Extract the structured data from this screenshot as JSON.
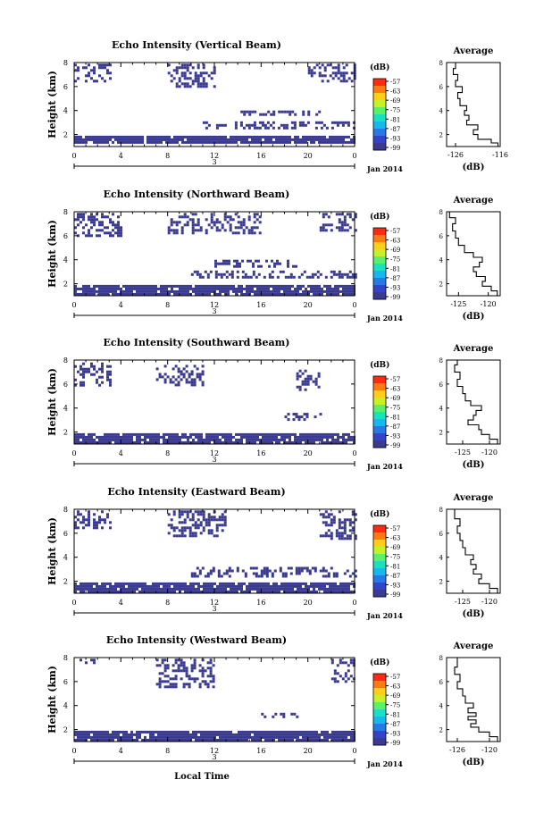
{
  "xlabel": "Local Time",
  "date_label": "Jan 2014",
  "colorbar": {
    "unit": "(dB)",
    "ticks": [
      "-57",
      "-63",
      "-69",
      "-75",
      "-81",
      "-87",
      "-93",
      "-99"
    ],
    "colors": [
      "#ff2a12",
      "#ff7a10",
      "#ffcf18",
      "#c8f028",
      "#5af06a",
      "#19e0c0",
      "#16b8f0",
      "#2a78e6",
      "#3344c8",
      "#3a3a90"
    ]
  },
  "chart_data": [
    {
      "type": "heatmap",
      "title": "Echo Intensity (Vertical Beam)",
      "ylabel": "Height (km)",
      "xlabel": "",
      "xticks": [
        "0",
        "4",
        "8",
        "12",
        "16",
        "20",
        "0"
      ],
      "xlim": [
        0,
        24
      ],
      "yticks": [
        "2",
        "4",
        "6",
        "8"
      ],
      "ylim": [
        1,
        8
      ],
      "day_marker": "3",
      "dominant_value_db": -99,
      "echo_layers": [
        {
          "t_start": 0,
          "t_end": 24,
          "h_bottom": 1.3,
          "h_top": 1.9
        },
        {
          "t_start": 11,
          "t_end": 24,
          "h_bottom": 2.6,
          "h_top": 3.1
        },
        {
          "t_start": 14,
          "t_end": 21,
          "h_bottom": 3.6,
          "h_top": 4.0
        },
        {
          "t_start": 0,
          "t_end": 3,
          "h_bottom": 6.5,
          "h_top": 7.9
        },
        {
          "t_start": 8,
          "t_end": 12,
          "h_bottom": 6.0,
          "h_top": 7.9
        },
        {
          "t_start": 20,
          "t_end": 24,
          "h_bottom": 6.5,
          "h_top": 7.9
        }
      ],
      "average": {
        "title": "Average",
        "xlabel": "(dB)",
        "xlim": [
          -128,
          -116
        ],
        "xticks": [
          "-126",
          "-116"
        ],
        "ylim": [
          1,
          8
        ],
        "yticks": [
          "2",
          "4",
          "6",
          "8"
        ],
        "profile": [
          {
            "h": 1.0,
            "v": -116.5
          },
          {
            "h": 1.3,
            "v": -118
          },
          {
            "h": 1.6,
            "v": -121
          },
          {
            "h": 2.0,
            "v": -122
          },
          {
            "h": 2.4,
            "v": -121
          },
          {
            "h": 2.8,
            "v": -123.5
          },
          {
            "h": 3.2,
            "v": -123
          },
          {
            "h": 3.6,
            "v": -124
          },
          {
            "h": 4.0,
            "v": -123.5
          },
          {
            "h": 4.4,
            "v": -125
          },
          {
            "h": 5.0,
            "v": -125.5
          },
          {
            "h": 5.5,
            "v": -124.5
          },
          {
            "h": 6.0,
            "v": -126
          },
          {
            "h": 6.5,
            "v": -125.5
          },
          {
            "h": 7.0,
            "v": -126.5
          },
          {
            "h": 7.5,
            "v": -126
          },
          {
            "h": 8.0,
            "v": -127
          }
        ]
      }
    },
    {
      "type": "heatmap",
      "title": "Echo Intensity (Northward Beam)",
      "ylabel": "Height (km)",
      "xlabel": "",
      "xticks": [
        "0",
        "4",
        "8",
        "12",
        "16",
        "20",
        "0"
      ],
      "xlim": [
        0,
        24
      ],
      "yticks": [
        "2",
        "4",
        "6",
        "8"
      ],
      "ylim": [
        1,
        8
      ],
      "day_marker": "3",
      "dominant_value_db": -99,
      "echo_layers": [
        {
          "t_start": 0,
          "t_end": 24,
          "h_bottom": 1.2,
          "h_top": 1.9
        },
        {
          "t_start": 10,
          "t_end": 24,
          "h_bottom": 2.5,
          "h_top": 3.1
        },
        {
          "t_start": 12,
          "t_end": 19,
          "h_bottom": 3.5,
          "h_top": 4.0
        },
        {
          "t_start": 0,
          "t_end": 4,
          "h_bottom": 6.0,
          "h_top": 7.9
        },
        {
          "t_start": 8,
          "t_end": 16,
          "h_bottom": 6.3,
          "h_top": 7.9
        },
        {
          "t_start": 21,
          "t_end": 24,
          "h_bottom": 6.5,
          "h_top": 7.9
        }
      ],
      "average": {
        "title": "Average",
        "xlabel": "(dB)",
        "xlim": [
          -127,
          -118
        ],
        "xticks": [
          "-125",
          "-120"
        ],
        "ylim": [
          1,
          8
        ],
        "yticks": [
          "2",
          "4",
          "6",
          "8"
        ],
        "profile": [
          {
            "h": 1.0,
            "v": -118.5
          },
          {
            "h": 1.4,
            "v": -119.5
          },
          {
            "h": 1.8,
            "v": -121
          },
          {
            "h": 2.2,
            "v": -120.5
          },
          {
            "h": 2.6,
            "v": -122
          },
          {
            "h": 3.0,
            "v": -122.5
          },
          {
            "h": 3.4,
            "v": -121.5
          },
          {
            "h": 3.8,
            "v": -121
          },
          {
            "h": 4.2,
            "v": -122.5
          },
          {
            "h": 4.6,
            "v": -124
          },
          {
            "h": 5.2,
            "v": -125
          },
          {
            "h": 5.8,
            "v": -125.5
          },
          {
            "h": 6.4,
            "v": -126
          },
          {
            "h": 7.0,
            "v": -125.5
          },
          {
            "h": 7.5,
            "v": -126.5
          },
          {
            "h": 8.0,
            "v": -126
          }
        ]
      }
    },
    {
      "type": "heatmap",
      "title": "Echo Intensity (Southward Beam)",
      "ylabel": "Height (km)",
      "xlabel": "",
      "xticks": [
        "0",
        "4",
        "8",
        "12",
        "16",
        "20",
        "0"
      ],
      "xlim": [
        0,
        24
      ],
      "yticks": [
        "2",
        "4",
        "6",
        "8"
      ],
      "ylim": [
        1,
        8
      ],
      "day_marker": "3",
      "dominant_value_db": -99,
      "echo_layers": [
        {
          "t_start": 0,
          "t_end": 24,
          "h_bottom": 1.2,
          "h_top": 1.9
        },
        {
          "t_start": 18,
          "t_end": 21,
          "h_bottom": 3.0,
          "h_top": 3.6
        },
        {
          "t_start": 0,
          "t_end": 3,
          "h_bottom": 6.0,
          "h_top": 7.8
        },
        {
          "t_start": 7,
          "t_end": 11,
          "h_bottom": 6.0,
          "h_top": 7.6
        },
        {
          "t_start": 19,
          "t_end": 21,
          "h_bottom": 5.5,
          "h_top": 7.2
        }
      ],
      "average": {
        "title": "Average",
        "xlabel": "(dB)",
        "xlim": [
          -128,
          -118
        ],
        "xticks": [
          "-125",
          "-120"
        ],
        "ylim": [
          1,
          8
        ],
        "yticks": [
          "2",
          "4",
          "6",
          "8"
        ],
        "profile": [
          {
            "h": 1.0,
            "v": -118.5
          },
          {
            "h": 1.4,
            "v": -120
          },
          {
            "h": 1.8,
            "v": -121.5
          },
          {
            "h": 2.2,
            "v": -122
          },
          {
            "h": 2.6,
            "v": -124
          },
          {
            "h": 3.0,
            "v": -123
          },
          {
            "h": 3.4,
            "v": -122.5
          },
          {
            "h": 3.8,
            "v": -121.5
          },
          {
            "h": 4.2,
            "v": -123.5
          },
          {
            "h": 4.6,
            "v": -124.5
          },
          {
            "h": 5.2,
            "v": -125
          },
          {
            "h": 5.8,
            "v": -126
          },
          {
            "h": 6.4,
            "v": -125.5
          },
          {
            "h": 7.0,
            "v": -126.5
          },
          {
            "h": 7.6,
            "v": -126
          },
          {
            "h": 8.0,
            "v": -127
          }
        ]
      }
    },
    {
      "type": "heatmap",
      "title": "Echo Intensity (Eastward Beam)",
      "ylabel": "Height (km)",
      "xlabel": "",
      "xticks": [
        "0",
        "4",
        "8",
        "12",
        "16",
        "20",
        "0"
      ],
      "xlim": [
        0,
        24
      ],
      "yticks": [
        "2",
        "4",
        "6",
        "8"
      ],
      "ylim": [
        1,
        8
      ],
      "day_marker": "3",
      "dominant_value_db": -99,
      "echo_layers": [
        {
          "t_start": 0,
          "t_end": 24,
          "h_bottom": 1.2,
          "h_top": 1.9
        },
        {
          "t_start": 10,
          "t_end": 24,
          "h_bottom": 2.5,
          "h_top": 3.2
        },
        {
          "t_start": 0,
          "t_end": 3,
          "h_bottom": 6.5,
          "h_top": 7.9
        },
        {
          "t_start": 8,
          "t_end": 13,
          "h_bottom": 5.8,
          "h_top": 7.9
        },
        {
          "t_start": 21,
          "t_end": 24,
          "h_bottom": 5.5,
          "h_top": 7.9
        }
      ],
      "average": {
        "title": "Average",
        "xlabel": "(dB)",
        "xlim": [
          -128,
          -118
        ],
        "xticks": [
          "-125",
          "-120"
        ],
        "ylim": [
          1,
          8
        ],
        "yticks": [
          "2",
          "4",
          "6",
          "8"
        ],
        "profile": [
          {
            "h": 1.0,
            "v": -118.5
          },
          {
            "h": 1.4,
            "v": -120
          },
          {
            "h": 1.8,
            "v": -122
          },
          {
            "h": 2.2,
            "v": -121.5
          },
          {
            "h": 2.6,
            "v": -123
          },
          {
            "h": 3.0,
            "v": -122.5
          },
          {
            "h": 3.4,
            "v": -123.5
          },
          {
            "h": 3.8,
            "v": -123
          },
          {
            "h": 4.2,
            "v": -124.5
          },
          {
            "h": 4.8,
            "v": -125
          },
          {
            "h": 5.4,
            "v": -125.5
          },
          {
            "h": 6.0,
            "v": -126
          },
          {
            "h": 6.6,
            "v": -125.5
          },
          {
            "h": 7.2,
            "v": -126.5
          },
          {
            "h": 8.0,
            "v": -127
          }
        ]
      }
    },
    {
      "type": "heatmap",
      "title": "Echo Intensity (Westward Beam)",
      "ylabel": "Height (km)",
      "xlabel": "Local Time",
      "xticks": [
        "0",
        "4",
        "8",
        "12",
        "16",
        "20",
        "0"
      ],
      "xlim": [
        0,
        24
      ],
      "yticks": [
        "2",
        "4",
        "6",
        "8"
      ],
      "ylim": [
        1,
        8
      ],
      "day_marker": "3",
      "dominant_value_db": -99,
      "echo_layers": [
        {
          "t_start": 0,
          "t_end": 24,
          "h_bottom": 1.2,
          "h_top": 1.9
        },
        {
          "t_start": 16,
          "t_end": 19,
          "h_bottom": 3.0,
          "h_top": 3.4
        },
        {
          "t_start": 0,
          "t_end": 2,
          "h_bottom": 7.5,
          "h_top": 7.9
        },
        {
          "t_start": 7,
          "t_end": 12,
          "h_bottom": 5.5,
          "h_top": 7.9
        },
        {
          "t_start": 22,
          "t_end": 24,
          "h_bottom": 6.0,
          "h_top": 7.9
        }
      ],
      "average": {
        "title": "Average",
        "xlabel": "(dB)",
        "xlim": [
          -128,
          -118
        ],
        "xticks": [
          "-126",
          "-120"
        ],
        "ylim": [
          1,
          8
        ],
        "yticks": [
          "2",
          "4",
          "6",
          "8"
        ],
        "profile": [
          {
            "h": 1.0,
            "v": -118.5
          },
          {
            "h": 1.4,
            "v": -120
          },
          {
            "h": 1.8,
            "v": -122
          },
          {
            "h": 2.2,
            "v": -123.5
          },
          {
            "h": 2.5,
            "v": -122.5
          },
          {
            "h": 2.8,
            "v": -124
          },
          {
            "h": 3.1,
            "v": -122.5
          },
          {
            "h": 3.4,
            "v": -124
          },
          {
            "h": 3.8,
            "v": -123
          },
          {
            "h": 4.2,
            "v": -124.5
          },
          {
            "h": 4.8,
            "v": -125
          },
          {
            "h": 5.4,
            "v": -126
          },
          {
            "h": 6.0,
            "v": -125.5
          },
          {
            "h": 6.6,
            "v": -126.5
          },
          {
            "h": 7.2,
            "v": -126
          },
          {
            "h": 8.0,
            "v": -127
          }
        ]
      }
    }
  ]
}
